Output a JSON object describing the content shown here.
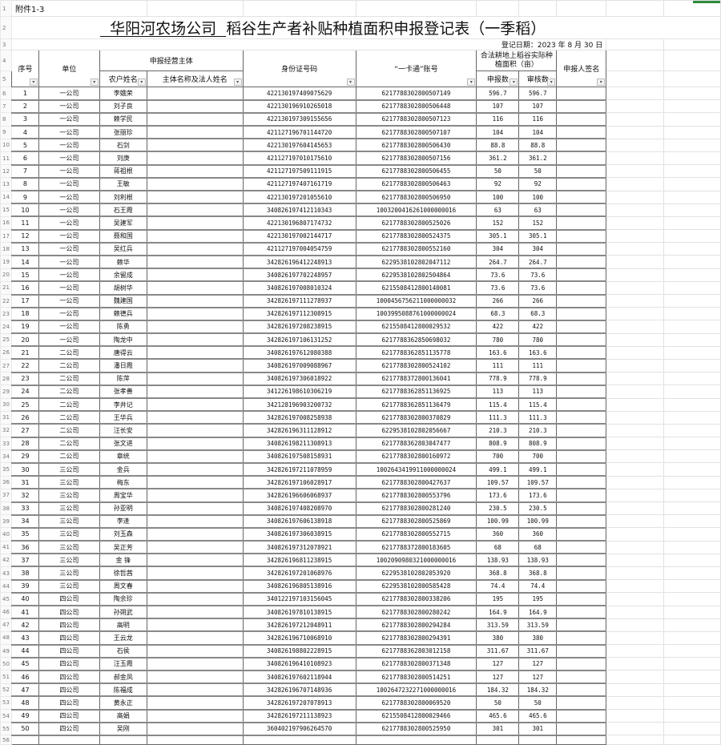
{
  "sheet": {
    "annex": "附件1-3",
    "title_company": "华阳河农场公司",
    "title_rest": "稻谷生产者补贴种植面积申报登记表（一季稻）",
    "date_line": "登记日期：2023 年 8 月 30 日",
    "headers": {
      "seq": "序号",
      "unit": "单位",
      "entity_group": "申报经营主体",
      "farmer_name": "农户姓名",
      "entity_name": "主体名称及法人姓名",
      "id_number": "身份证号码",
      "card_account": "“一卡通”账号",
      "area_group": "合法耕地上稻谷实际种植面积（亩）",
      "declared": "申报数",
      "approved": "审核数",
      "signature": "申报人签名"
    },
    "filter_icon": "dropdown-arrow-icon",
    "row_numbers_start": 1,
    "rows": [
      [
        "1",
        "一公司",
        "李娥荣",
        "422130197409075629",
        "6217788302800507149",
        "596.7",
        "596.7"
      ],
      [
        "2",
        "一公司",
        "刘子良",
        "422130196910265018",
        "6217788302800506448",
        "107",
        "107"
      ],
      [
        "3",
        "一公司",
        "赖学民",
        "422130197309155656",
        "6217788302800507123",
        "116",
        "116"
      ],
      [
        "4",
        "一公司",
        "张丽珍",
        "421127196701144720",
        "6217788302800507107",
        "104",
        "104"
      ],
      [
        "5",
        "一公司",
        "石剑",
        "422130197604145653",
        "6217788302800506430",
        "88.8",
        "88.8"
      ],
      [
        "6",
        "一公司",
        "刘庚",
        "421127197010175610",
        "6217788302800507156",
        "361.2",
        "361.2"
      ],
      [
        "7",
        "一公司",
        "蒋祖根",
        "421127197509111915",
        "6217788302800506455",
        "50",
        "50"
      ],
      [
        "8",
        "一公司",
        "王敏",
        "421127197407161719",
        "6217788302800506463",
        "92",
        "92"
      ],
      [
        "9",
        "一公司",
        "刘利根",
        "422130197201055610",
        "6217788302800506950",
        "100",
        "100"
      ],
      [
        "10",
        "一公司",
        "石王霞",
        "340826197412110343",
        "1003200416261000000016",
        "63",
        "63"
      ],
      [
        "11",
        "一公司",
        "吴建军",
        "422130196807174732",
        "6217788302800525026",
        "152",
        "152"
      ],
      [
        "12",
        "一公司",
        "聂和国",
        "422130197002144717",
        "6217788302800524375",
        "305.1",
        "305.1"
      ],
      [
        "13",
        "一公司",
        "吴红兵",
        "421127197004054759",
        "6217788302800552160",
        "304",
        "304"
      ],
      [
        "14",
        "一公司",
        "赖华",
        "342826196412248913",
        "6229538102802047112",
        "264.7",
        "264.7"
      ],
      [
        "15",
        "一公司",
        "余留成",
        "340826197702248957",
        "6229538102802504864",
        "73.6",
        "73.6"
      ],
      [
        "16",
        "一公司",
        "胡树华",
        "340826197008010324",
        "6215508412800140081",
        "73.6",
        "73.6"
      ],
      [
        "17",
        "一公司",
        "魏建国",
        "342826197111278937",
        "1000456756211000000032",
        "266",
        "266"
      ],
      [
        "18",
        "一公司",
        "赖德兵",
        "342826197112308915",
        "1003995088761000000024",
        "68.3",
        "68.3"
      ],
      [
        "19",
        "一公司",
        "陈勇",
        "342826197208238915",
        "6215508412800029532",
        "422",
        "422"
      ],
      [
        "20",
        "一公司",
        "陶龙中",
        "342826197106131252",
        "6217788362850698032",
        "780",
        "780"
      ],
      [
        "21",
        "二公司",
        "唐得云",
        "340826197612080388",
        "6217788362851135778",
        "163.6",
        "163.6"
      ],
      [
        "22",
        "二公司",
        "潘日霞",
        "340826197009088967",
        "6217788302800524102",
        "111",
        "111"
      ],
      [
        "23",
        "二公司",
        "陈萍",
        "340826197306018922",
        "6217788372800136041",
        "778.9",
        "778.9"
      ],
      [
        "24",
        "二公司",
        "张孝善",
        "341226198610306219",
        "6217788362851136925",
        "113",
        "113"
      ],
      [
        "25",
        "二公司",
        "李井记",
        "342128196903200732",
        "6217788362851136479",
        "115.4",
        "115.4"
      ],
      [
        "26",
        "二公司",
        "王华兵",
        "342826197008258938",
        "6217788302800370829",
        "111.3",
        "111.3"
      ],
      [
        "27",
        "二公司",
        "汪长安",
        "342826196311128912",
        "6229538102802056667",
        "210.3",
        "210.3"
      ],
      [
        "28",
        "二公司",
        "张文进",
        "340826198211308913",
        "6217788362803047477",
        "808.9",
        "808.9"
      ],
      [
        "29",
        "二公司",
        "章统",
        "340826197508158931",
        "6217788302800160972",
        "700",
        "700"
      ],
      [
        "30",
        "三公司",
        "金兵",
        "342826197211078959",
        "1002643419911000000024",
        "499.1",
        "499.1"
      ],
      [
        "31",
        "三公司",
        "梅东",
        "342826197106028917",
        "6217788302800427637",
        "109.57",
        "109.57"
      ],
      [
        "32",
        "三公司",
        "周宝华",
        "342826196606068937",
        "6217788302800553796",
        "173.6",
        "173.6"
      ],
      [
        "33",
        "三公司",
        "孙亚明",
        "340826197408208970",
        "6217788302800281240",
        "230.5",
        "230.5"
      ],
      [
        "34",
        "三公司",
        "李逢",
        "340826197606138918",
        "6217788302800525869",
        "100.99",
        "100.99"
      ],
      [
        "35",
        "三公司",
        "刘玉森",
        "340826197306038915",
        "6217788302800552715",
        "360",
        "360"
      ],
      [
        "36",
        "三公司",
        "吴正芳",
        "340826197312078921",
        "6217788372800183605",
        "68",
        "68"
      ],
      [
        "37",
        "三公司",
        "金 锋",
        "342826196811238915",
        "1002090980321000000016",
        "138.93",
        "138.93"
      ],
      [
        "38",
        "三公司",
        "徐哲茜",
        "342826197201068976",
        "6229538102802053920",
        "368.8",
        "368.8"
      ],
      [
        "39",
        "三公司",
        "周文春",
        "340826196805138916",
        "6229538102800585428",
        "74.4",
        "74.4"
      ],
      [
        "40",
        "四公司",
        "陶余珍",
        "340122197103156045",
        "6217788302800338206",
        "195",
        "195"
      ],
      [
        "41",
        "四公司",
        "孙朔武",
        "340826197810138915",
        "6217788302800280242",
        "164.9",
        "164.9"
      ],
      [
        "42",
        "四公司",
        "高明",
        "342826197212048911",
        "6217788302800294284",
        "313.59",
        "313.59"
      ],
      [
        "43",
        "四公司",
        "王云龙",
        "342826196710068910",
        "6217788302800294391",
        "380",
        "380"
      ],
      [
        "44",
        "四公司",
        "石侯",
        "340826198802228915",
        "6217788362803012158",
        "311.67",
        "311.67"
      ],
      [
        "45",
        "四公司",
        "汪玉霞",
        "340826196410108923",
        "6217788302800371348",
        "127",
        "127"
      ],
      [
        "46",
        "四公司",
        "郝金凤",
        "340826197602118944",
        "6217788302800514251",
        "127",
        "127"
      ],
      [
        "47",
        "四公司",
        "陈福成",
        "342826196707148936",
        "1002647232271000000016",
        "184.32",
        "184.32"
      ],
      [
        "48",
        "四公司",
        "黄永正",
        "342826197207078913",
        "6217788302800069520",
        "50",
        "50"
      ],
      [
        "49",
        "四公司",
        "高娟",
        "342826197211138923",
        "6215508412800029466",
        "465.6",
        "465.6"
      ],
      [
        "50",
        "四公司",
        "吴刚",
        "360402197906264570",
        "6217788302800525950",
        "301",
        "301"
      ]
    ]
  }
}
